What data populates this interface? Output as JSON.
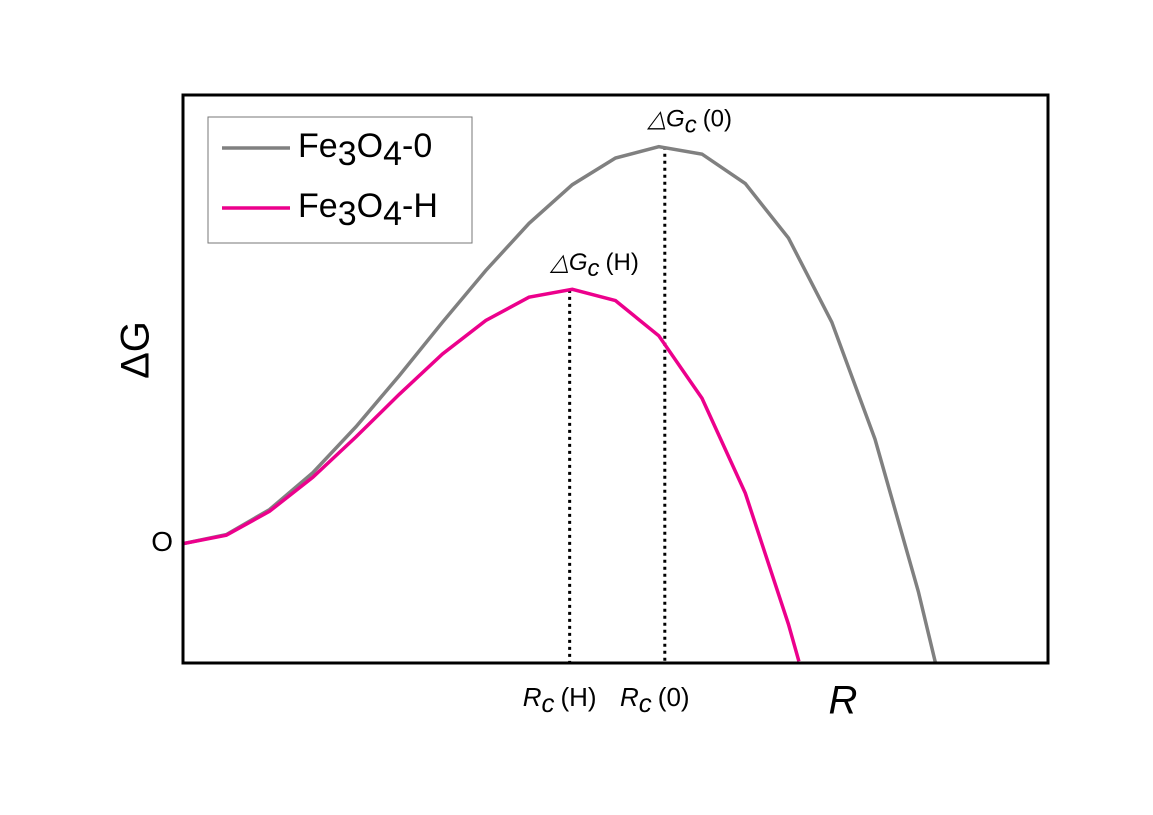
{
  "chart_data": {
    "type": "line",
    "xlabel": "R",
    "ylabel": "ΔG",
    "xlim": [
      0,
      10
    ],
    "ylim": [
      -2.1,
      7.9
    ],
    "yticks": [
      {
        "value": 0,
        "label": "O"
      }
    ],
    "legend": "upper left",
    "series": [
      {
        "name": "Fe3O4-0",
        "color": "#808080",
        "x": [
          0,
          0.5,
          1,
          1.5,
          2,
          2.5,
          3,
          3.5,
          4,
          4.5,
          5,
          5.5,
          6,
          6.5,
          7,
          7.5,
          8,
          8.5,
          8.7
        ],
        "values": [
          0,
          0.16,
          0.6,
          1.25,
          2.06,
          2.96,
          3.9,
          4.81,
          5.64,
          6.32,
          6.79,
          6.99,
          6.86,
          6.34,
          5.38,
          3.9,
          1.84,
          -0.84,
          -2.1
        ]
      },
      {
        "name": "Fe3O4-H",
        "color": "#ec008c",
        "x": [
          0,
          0.5,
          1,
          1.5,
          2,
          2.5,
          3,
          3.5,
          4,
          4.5,
          5,
          5.5,
          6,
          6.5,
          7,
          7.12
        ],
        "values": [
          0,
          0.15,
          0.57,
          1.17,
          1.88,
          2.63,
          3.34,
          3.93,
          4.34,
          4.48,
          4.28,
          3.66,
          2.56,
          0.89,
          -1.42,
          -2.07
        ]
      }
    ],
    "annotations": [
      {
        "x": 5.57,
        "y": 6.99,
        "peak": {
          "symbol": "△G",
          "sub": "c",
          "text": "(0)"
        },
        "axis": {
          "symbol": "R",
          "sub": "c",
          "text": "(0)"
        }
      },
      {
        "x": 4.47,
        "y": 4.47,
        "peak": {
          "symbol": "△G",
          "sub": "c",
          "text": "(H)"
        },
        "axis": {
          "symbol": "R",
          "sub": "c",
          "text": "(H)"
        }
      }
    ]
  }
}
